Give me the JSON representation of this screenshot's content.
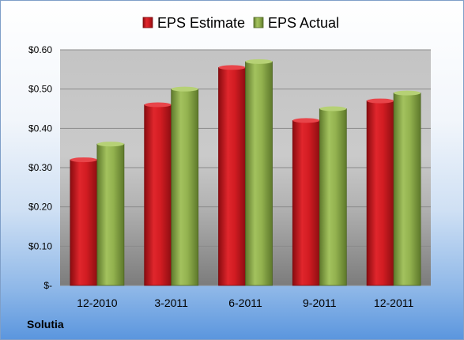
{
  "company": "Solutia",
  "chart_data": {
    "type": "bar",
    "categories": [
      "12-2010",
      "3-2011",
      "6-2011",
      "9-2011",
      "12-2011"
    ],
    "series": [
      {
        "name": "EPS Estimate",
        "values": [
          0.32,
          0.46,
          0.555,
          0.42,
          0.47
        ],
        "color": "#c8141b"
      },
      {
        "name": "EPS Actual",
        "values": [
          0.36,
          0.5,
          0.57,
          0.45,
          0.49
        ],
        "color": "#8aa94a"
      }
    ],
    "title": "",
    "xlabel": "",
    "ylabel": "",
    "ylim": [
      0,
      0.6
    ],
    "yticks": [
      0,
      0.1,
      0.2,
      0.3,
      0.4,
      0.5,
      0.6
    ],
    "ytick_labels": [
      "$-",
      "$0.10",
      "$0.20",
      "$0.30",
      "$0.40",
      "$0.50",
      "$0.60"
    ],
    "grid": true,
    "legend": "top"
  }
}
